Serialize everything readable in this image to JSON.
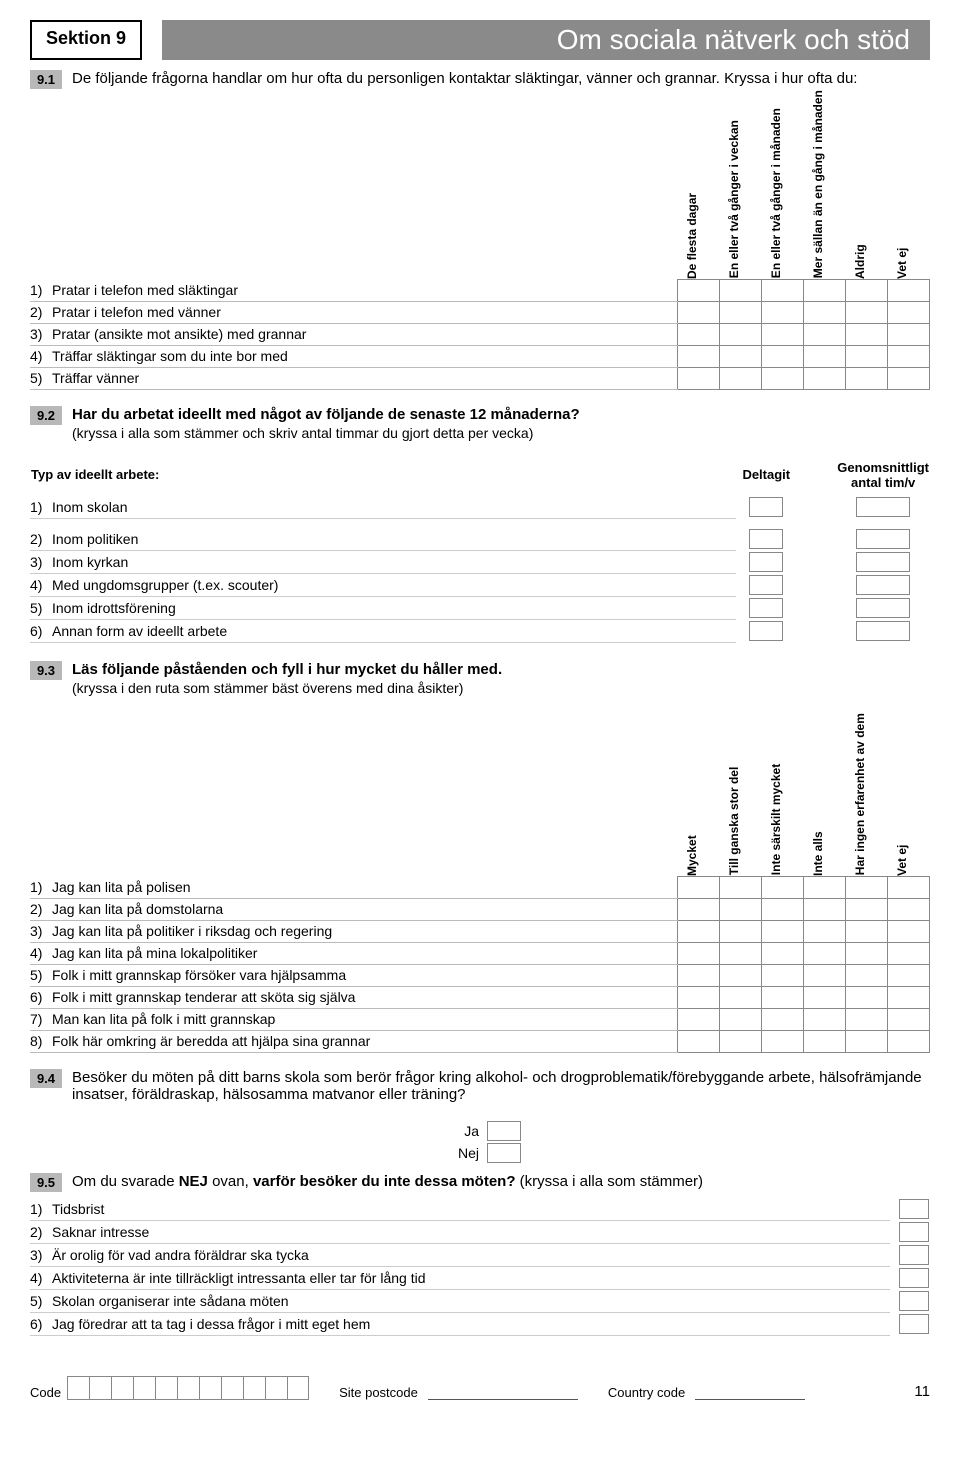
{
  "header": {
    "section_label": "Sektion 9",
    "title": "Om sociala nätverk och stöd"
  },
  "q91": {
    "badge": "9.1",
    "text_bold": "De följande frågorna handlar om hur ofta du personligen kontaktar släktingar, vänner och grannar. Kryssa i hur ofta du:",
    "cols": [
      "De flesta dagar",
      "En eller två gånger i veckan",
      "En eller två gånger i månaden",
      "Mer sällan än en gång i månaden",
      "Aldrig",
      "Vet ej"
    ],
    "rows": [
      {
        "n": "1)",
        "t": "Pratar i telefon med släktingar"
      },
      {
        "n": "2)",
        "t": "Pratar i telefon med vänner"
      },
      {
        "n": "3)",
        "t": "Pratar (ansikte mot ansikte) med grannar"
      },
      {
        "n": "4)",
        "t": "Träffar släktingar som du inte bor med"
      },
      {
        "n": "5)",
        "t": "Träffar vänner"
      }
    ]
  },
  "q92": {
    "badge": "9.2",
    "text_bold": "Har du arbetat ideellt med något av följande de senaste 12 månaderna?",
    "text_sub": "(kryssa i alla som stämmer och skriv antal timmar du gjort detta per vecka)",
    "type_label": "Typ av ideellt arbete:",
    "col1": "Deltagit",
    "col2": "Genomsnittligt antal tim/v",
    "rows": [
      {
        "n": "1)",
        "t": "Inom skolan"
      },
      {
        "n": "2)",
        "t": "Inom politiken"
      },
      {
        "n": "3)",
        "t": "Inom kyrkan"
      },
      {
        "n": "4)",
        "t": "Med ungdomsgrupper (t.ex. scouter)"
      },
      {
        "n": "5)",
        "t": "Inom idrottsförening"
      },
      {
        "n": "6)",
        "t": "Annan form av ideellt arbete"
      }
    ]
  },
  "q93": {
    "badge": "9.3",
    "text_bold": "Läs följande påståenden och fyll i hur mycket du håller med.",
    "text_sub": "(kryssa i den ruta som stämmer bäst överens med dina åsikter)",
    "cols": [
      "Mycket",
      "Till ganska stor del",
      "Inte särskilt mycket",
      "Inte alls",
      "Har ingen erfarenhet av dem",
      "Vet ej"
    ],
    "rows": [
      {
        "n": "1)",
        "t": "Jag kan lita på polisen"
      },
      {
        "n": "2)",
        "t": "Jag kan lita på domstolarna"
      },
      {
        "n": "3)",
        "t": "Jag kan lita på politiker i riksdag och regering"
      },
      {
        "n": "4)",
        "t": "Jag kan lita på mina lokalpolitiker"
      },
      {
        "n": "5)",
        "t": "Folk i mitt grannskap försöker vara hjälpsamma"
      },
      {
        "n": "6)",
        "t": "Folk i mitt grannskap tenderar att sköta sig själva"
      },
      {
        "n": "7)",
        "t": "Man kan lita på folk i mitt grannskap"
      },
      {
        "n": "8)",
        "t": "Folk här omkring är beredda att hjälpa sina grannar"
      }
    ]
  },
  "q94": {
    "badge": "9.4",
    "text_bold": "Besöker du möten på ditt barns skola som berör frågor kring alkohol- och drogproblematik/förebyggande arbete, hälsofrämjande insatser, föräldraskap, hälsosamma matvanor eller träning?",
    "yes": "Ja",
    "no": "Nej"
  },
  "q95": {
    "badge": "9.5",
    "text_pre": "Om du svarade ",
    "text_nej": "NEJ",
    "text_mid": " ovan, ",
    "text_bold": "varför besöker du inte dessa möten?",
    "text_post": " (kryssa i alla som stämmer)",
    "rows": [
      {
        "n": "1)",
        "t": "Tidsbrist"
      },
      {
        "n": "2)",
        "t": "Saknar intresse"
      },
      {
        "n": "3)",
        "t": "Är orolig för vad andra föräldrar ska tycka"
      },
      {
        "n": "4)",
        "t": "Aktiviteterna är inte tillräckligt intressanta eller tar för lång tid"
      },
      {
        "n": "5)",
        "t": "Skolan organiserar inte sådana möten"
      },
      {
        "n": "6)",
        "t": "Jag föredrar att ta tag i dessa frågor i mitt eget hem"
      }
    ]
  },
  "footer": {
    "code_label": "Code",
    "code_cells": 11,
    "postcode_label": "Site postcode",
    "country_label": "Country code",
    "page": "11"
  }
}
